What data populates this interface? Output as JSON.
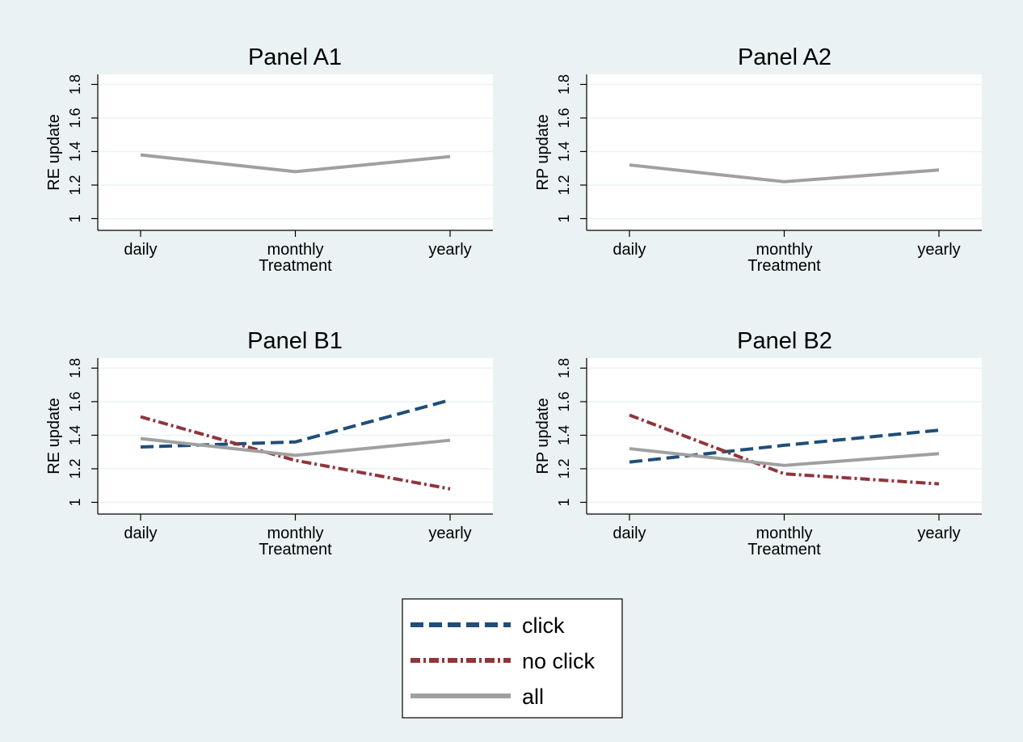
{
  "chart_data": [
    {
      "type": "line",
      "title": "Panel A1",
      "xlabel": "Treatment",
      "ylabel": "RE update",
      "categories": [
        "daily",
        "monthly",
        "yearly"
      ],
      "yticks": [
        "1",
        "1.2",
        "1.4",
        "1.6",
        "1.8"
      ],
      "ylim": [
        0.93,
        1.86
      ],
      "grid": true,
      "series": [
        {
          "key": "all",
          "values": [
            1.38,
            1.28,
            1.37
          ]
        }
      ]
    },
    {
      "type": "line",
      "title": "Panel A2",
      "xlabel": "Treatment",
      "ylabel": "RP update",
      "categories": [
        "daily",
        "monthly",
        "yearly"
      ],
      "yticks": [
        "1",
        "1.2",
        "1.4",
        "1.6",
        "1.8"
      ],
      "ylim": [
        0.93,
        1.86
      ],
      "grid": true,
      "series": [
        {
          "key": "all",
          "values": [
            1.32,
            1.22,
            1.29
          ]
        }
      ]
    },
    {
      "type": "line",
      "title": "Panel B1",
      "xlabel": "Treatment",
      "ylabel": "RE update",
      "categories": [
        "daily",
        "monthly",
        "yearly"
      ],
      "yticks": [
        "1",
        "1.2",
        "1.4",
        "1.6",
        "1.8"
      ],
      "ylim": [
        0.93,
        1.86
      ],
      "grid": true,
      "series": [
        {
          "key": "click",
          "values": [
            1.33,
            1.36,
            1.61
          ]
        },
        {
          "key": "noclick",
          "values": [
            1.51,
            1.25,
            1.08
          ]
        },
        {
          "key": "all",
          "values": [
            1.38,
            1.28,
            1.37
          ]
        }
      ]
    },
    {
      "type": "line",
      "title": "Panel B2",
      "xlabel": "Treatment",
      "ylabel": "RP update",
      "categories": [
        "daily",
        "monthly",
        "yearly"
      ],
      "yticks": [
        "1",
        "1.2",
        "1.4",
        "1.6",
        "1.8"
      ],
      "ylim": [
        0.93,
        1.86
      ],
      "grid": true,
      "series": [
        {
          "key": "click",
          "values": [
            1.24,
            1.34,
            1.43
          ]
        },
        {
          "key": "noclick",
          "values": [
            1.52,
            1.17,
            1.11
          ]
        },
        {
          "key": "all",
          "values": [
            1.32,
            1.22,
            1.29
          ]
        }
      ]
    }
  ],
  "legend": {
    "placement": "bottom-center",
    "items": [
      {
        "key": "click",
        "label": "click"
      },
      {
        "key": "noclick",
        "label": "no click"
      },
      {
        "key": "all",
        "label": "all"
      }
    ]
  },
  "series_styles": {
    "click": {
      "color": "#1f4e79",
      "dash": "dashed"
    },
    "noclick": {
      "color": "#90353b",
      "dash": "dash-dot"
    },
    "all": {
      "color": "#a0a0a0",
      "dash": "solid"
    }
  },
  "colors": {
    "figure_background": "#eaf2f3",
    "plot_background": "#ffffff",
    "gridline": "#eaf2f3",
    "axis": "#000000"
  }
}
